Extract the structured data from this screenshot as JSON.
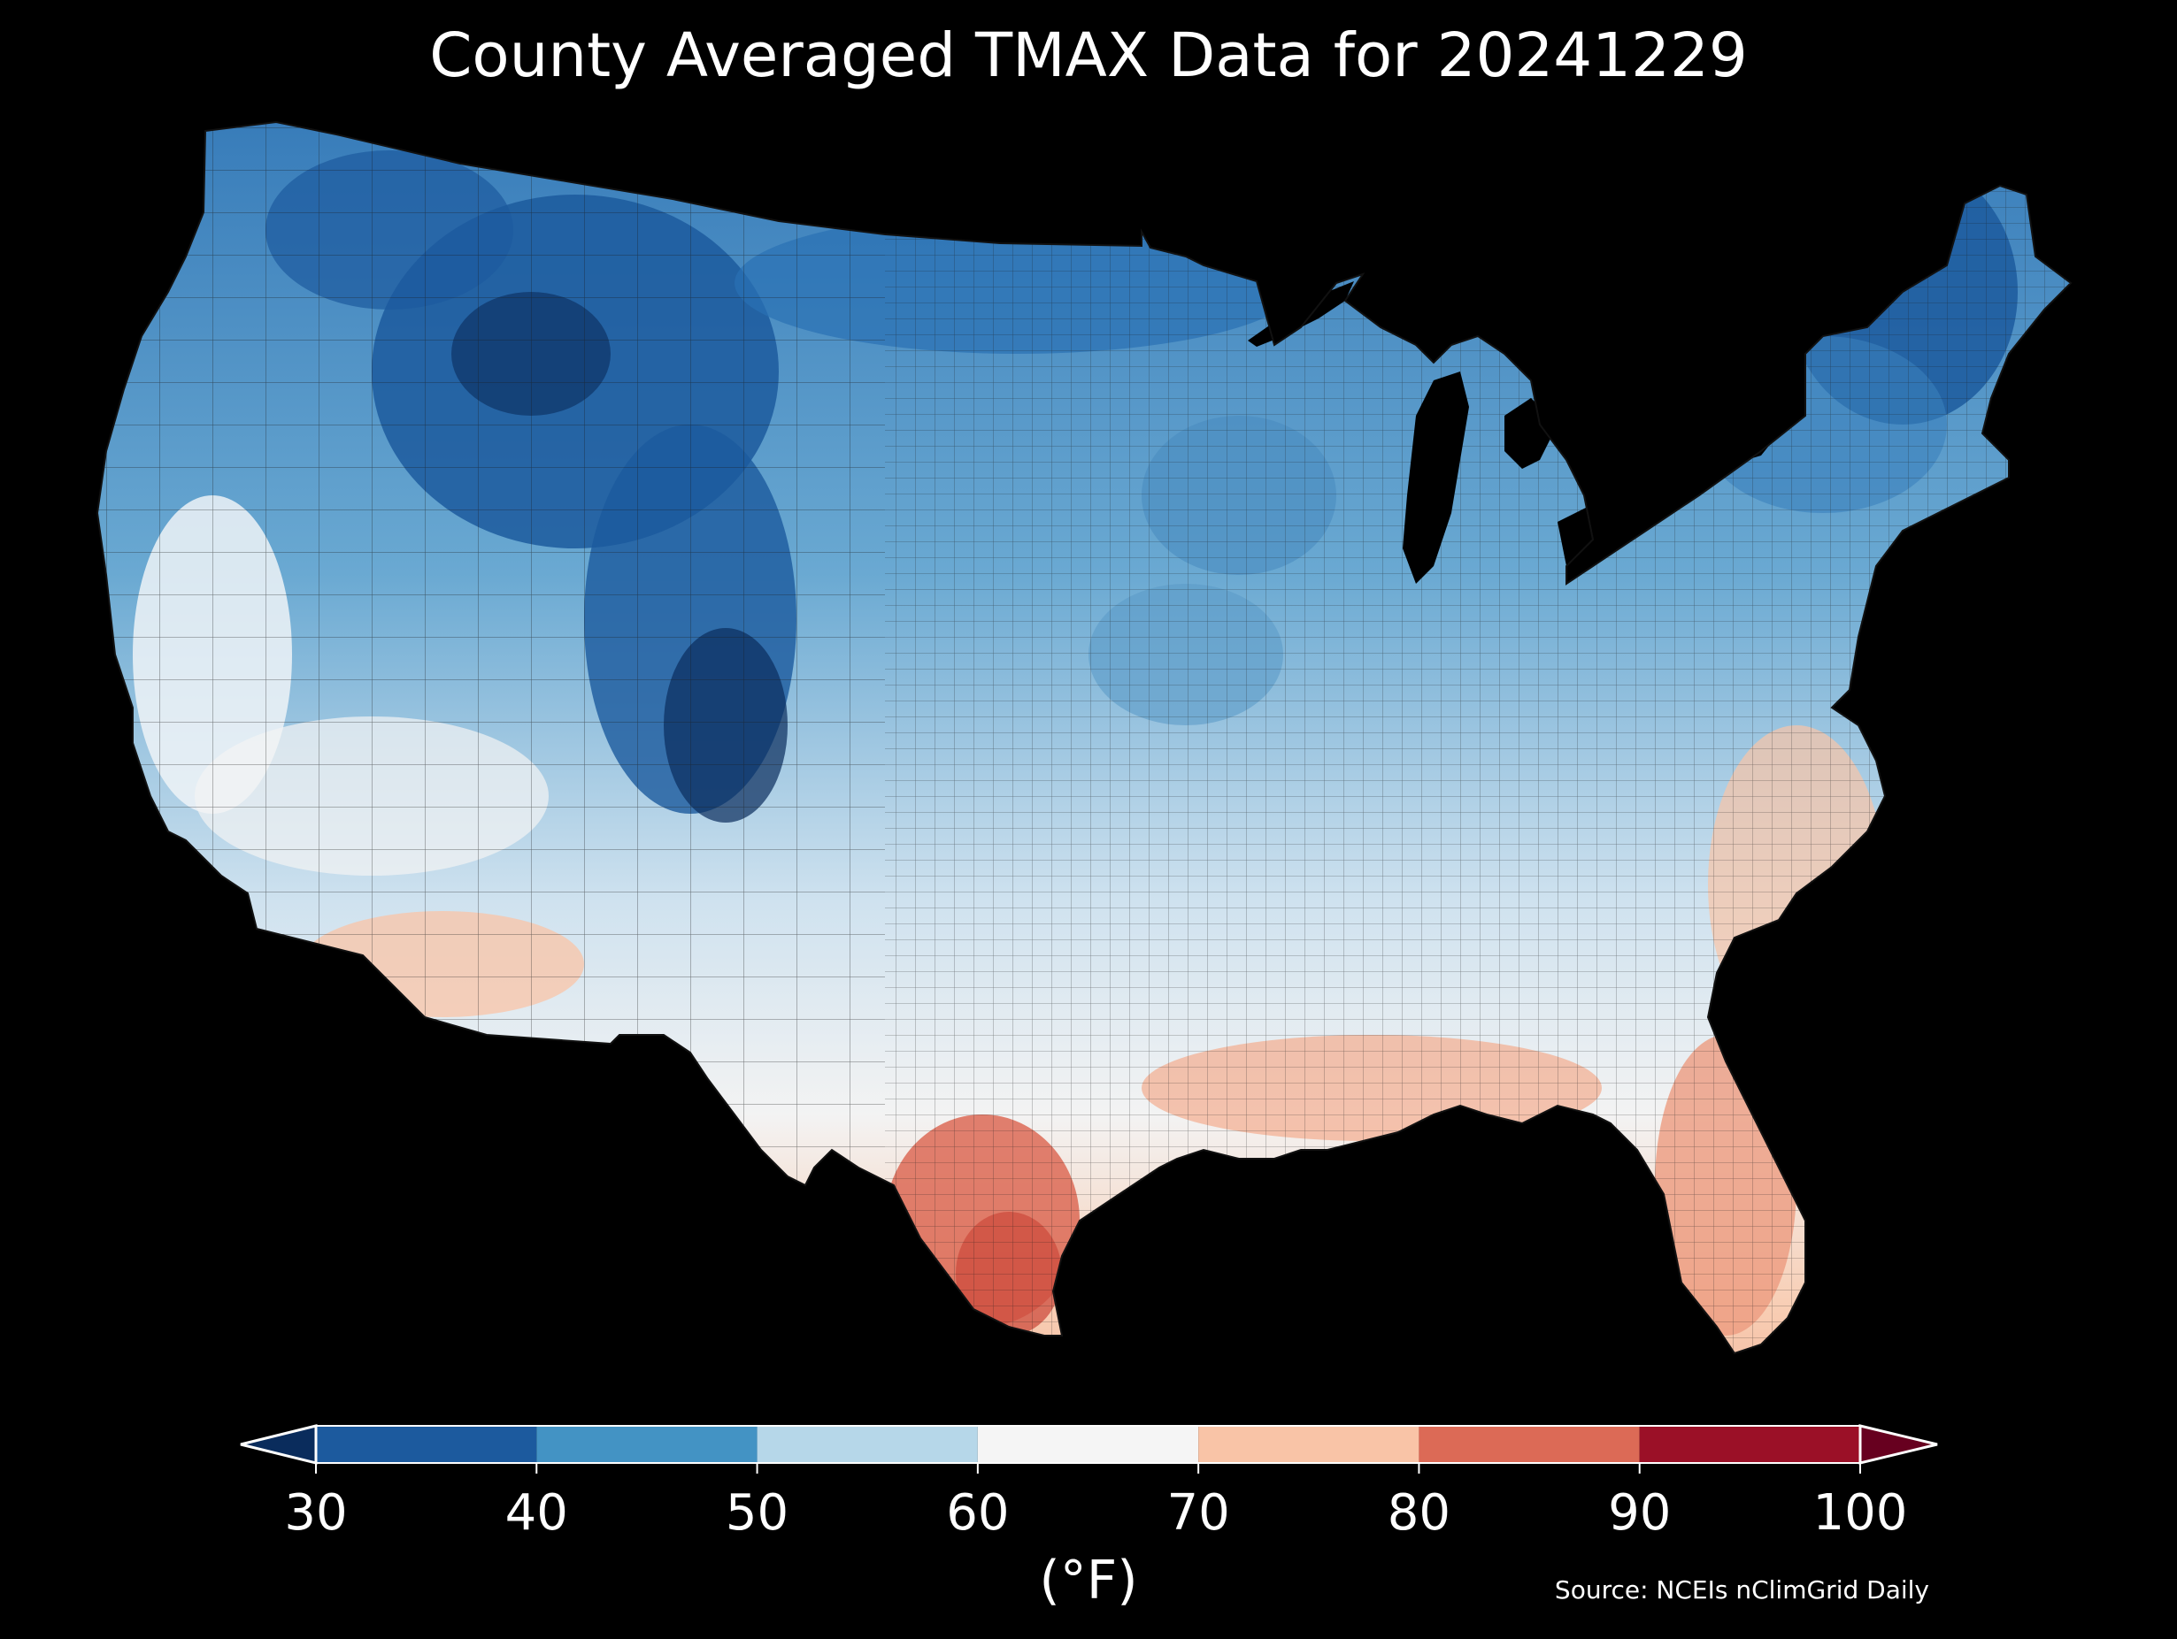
{
  "title": "County Averaged TMAX Data for 20241229",
  "colorbar": {
    "ticks": [
      "30",
      "40",
      "50",
      "60",
      "70",
      "80",
      "90",
      "100"
    ],
    "unit": "(°F)",
    "extend": "both",
    "bins": [
      {
        "from": 30,
        "to": 40,
        "color": "#1c5a9e"
      },
      {
        "from": 40,
        "to": 50,
        "color": "#4393c4"
      },
      {
        "from": 50,
        "to": 60,
        "color": "#b6d7e9"
      },
      {
        "from": 60,
        "to": 70,
        "color": "#f5f5f5"
      },
      {
        "from": 70,
        "to": 80,
        "color": "#f9c4a7"
      },
      {
        "from": 80,
        "to": 90,
        "color": "#dc6a56"
      },
      {
        "from": 90,
        "to": 100,
        "color": "#9b1027"
      }
    ],
    "under_color": "#0a2c5c",
    "over_color": "#67001f"
  },
  "source": "Source: NCEIs nClimGrid Daily",
  "map": {
    "region": "Contiguous United States",
    "background": "#000000",
    "county_border_color": "#1a1a1a"
  }
}
